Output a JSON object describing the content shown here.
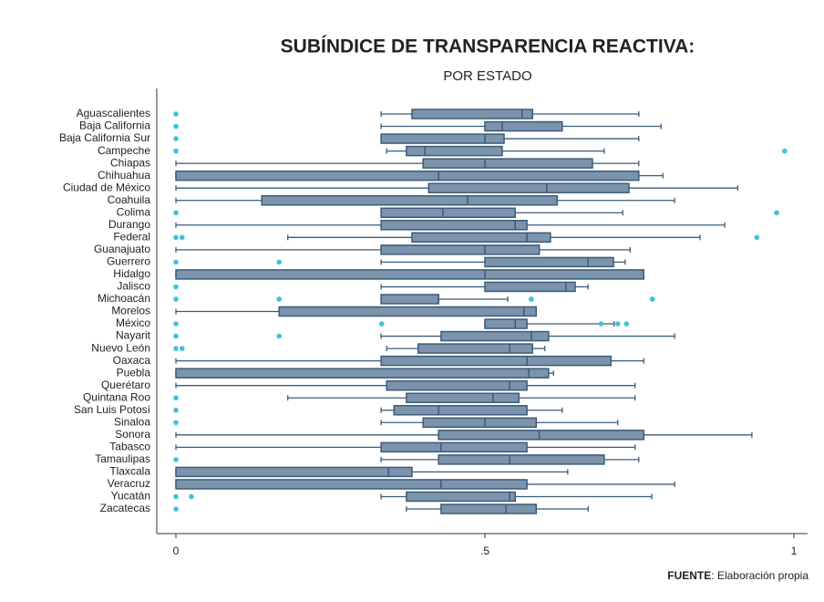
{
  "chart_data": {
    "type": "boxplot",
    "orientation": "horizontal",
    "title": "SUBÍNDICE DE TRANSPARENCIA REACTIVA:",
    "subtitle": "POR ESTADO",
    "source_label": "FUENTE",
    "source_text": ": Elaboración propia",
    "box_color": "#7b94ac",
    "line_color": "#3b5b79",
    "outlier_color": "#3fc2da",
    "xlim": [
      0,
      1
    ],
    "xticks": [
      0,
      {
        "value": 0.5,
        "label": ".5"
      },
      1
    ],
    "categories": [
      "Aguascalientes",
      "Baja California",
      "Baja California Sur",
      "Campeche",
      "Chiapas",
      "Chihuahua",
      "Ciudad de México",
      "Coahuila",
      "Colima",
      "Durango",
      "Federal",
      "Guanajuato",
      "Guerrero",
      "Hidalgo",
      "Jalisco",
      "Michoacán",
      "Morelos",
      "México",
      "Nayarit",
      "Nuevo León",
      "Oaxaca",
      "Puebla",
      "Querétaro",
      "Quintana Roo",
      "San Luis Potosí",
      "Sinaloa",
      "Sonora",
      "Tabasco",
      "Tamaulipas",
      "Tlaxcala",
      "Veracruz",
      "Yucatán",
      "Zacatecas"
    ],
    "boxes": [
      {
        "low": 0.332,
        "q1": 0.382,
        "median": 0.56,
        "q3": 0.577,
        "high": 0.749,
        "outliers": [
          0
        ]
      },
      {
        "low": 0.332,
        "q1": 0.5,
        "median": 0.528,
        "q3": 0.625,
        "high": 0.785,
        "outliers": [
          0
        ]
      },
      {
        "low": 0.332,
        "q1": 0.332,
        "median": 0.5,
        "q3": 0.531,
        "high": 0.749,
        "outliers": [
          0
        ]
      },
      {
        "low": 0.341,
        "q1": 0.373,
        "median": 0.403,
        "q3": 0.528,
        "high": 0.693,
        "outliers": [
          0,
          0.985
        ]
      },
      {
        "low": 0,
        "q1": 0.4,
        "median": 0.5,
        "q3": 0.674,
        "high": 0.749,
        "outliers": []
      },
      {
        "low": 0,
        "q1": 0,
        "median": 0.425,
        "q3": 0.749,
        "high": 0.788,
        "outliers": []
      },
      {
        "low": 0,
        "q1": 0.409,
        "median": 0.6,
        "q3": 0.733,
        "high": 0.909,
        "outliers": []
      },
      {
        "low": 0,
        "q1": 0.139,
        "median": 0.472,
        "q3": 0.617,
        "high": 0.807,
        "outliers": []
      },
      {
        "low": 0.332,
        "q1": 0.332,
        "median": 0.432,
        "q3": 0.549,
        "high": 0.723,
        "outliers": [
          0,
          0.972
        ]
      },
      {
        "low": 0,
        "q1": 0.332,
        "median": 0.549,
        "q3": 0.568,
        "high": 0.888,
        "outliers": []
      },
      {
        "low": 0.181,
        "q1": 0.382,
        "median": 0.568,
        "q3": 0.606,
        "high": 0.848,
        "outliers": [
          0,
          0.01,
          0.94
        ]
      },
      {
        "low": 0,
        "q1": 0.332,
        "median": 0.5,
        "q3": 0.588,
        "high": 0.735,
        "outliers": []
      },
      {
        "low": 0.332,
        "q1": 0.5,
        "median": 0.667,
        "q3": 0.708,
        "high": 0.727,
        "outliers": [
          0,
          0.167
        ]
      },
      {
        "low": 0,
        "q1": 0,
        "median": 0.5,
        "q3": 0.757,
        "high": 0.757,
        "outliers": []
      },
      {
        "low": 0.332,
        "q1": 0.5,
        "median": 0.631,
        "q3": 0.646,
        "high": 0.667,
        "outliers": [
          0
        ]
      },
      {
        "low": 0.332,
        "q1": 0.332,
        "median": 0.425,
        "q3": 0.425,
        "high": 0.537,
        "outliers": [
          0,
          0.167,
          0.575,
          0.771
        ]
      },
      {
        "low": 0,
        "q1": 0.167,
        "median": 0.563,
        "q3": 0.583,
        "high": 0.583,
        "outliers": []
      },
      {
        "low": 0.5,
        "q1": 0.5,
        "median": 0.549,
        "q3": 0.568,
        "high": 0.709,
        "outliers": [
          0,
          0.333,
          0.688,
          0.715,
          0.729
        ]
      },
      {
        "low": 0.332,
        "q1": 0.429,
        "median": 0.575,
        "q3": 0.603,
        "high": 0.807,
        "outliers": [
          0,
          0.167
        ]
      },
      {
        "low": 0.341,
        "q1": 0.392,
        "median": 0.54,
        "q3": 0.577,
        "high": 0.597,
        "outliers": [
          0,
          0.01
        ]
      },
      {
        "low": 0,
        "q1": 0.332,
        "median": 0.568,
        "q3": 0.704,
        "high": 0.757,
        "outliers": []
      },
      {
        "low": 0,
        "q1": 0,
        "median": 0.571,
        "q3": 0.603,
        "high": 0.611,
        "outliers": []
      },
      {
        "low": 0,
        "q1": 0.341,
        "median": 0.54,
        "q3": 0.568,
        "high": 0.743,
        "outliers": []
      },
      {
        "low": 0.181,
        "q1": 0.373,
        "median": 0.513,
        "q3": 0.555,
        "high": 0.743,
        "outliers": [
          0
        ]
      },
      {
        "low": 0.332,
        "q1": 0.353,
        "median": 0.425,
        "q3": 0.568,
        "high": 0.625,
        "outliers": [
          0
        ]
      },
      {
        "low": 0.332,
        "q1": 0.4,
        "median": 0.5,
        "q3": 0.583,
        "high": 0.715,
        "outliers": [
          0
        ]
      },
      {
        "low": 0,
        "q1": 0.425,
        "median": 0.588,
        "q3": 0.757,
        "high": 0.932,
        "outliers": []
      },
      {
        "low": 0,
        "q1": 0.332,
        "median": 0.429,
        "q3": 0.568,
        "high": 0.743,
        "outliers": []
      },
      {
        "low": 0.332,
        "q1": 0.425,
        "median": 0.54,
        "q3": 0.693,
        "high": 0.749,
        "outliers": [
          0
        ]
      },
      {
        "low": 0,
        "q1": 0,
        "median": 0.344,
        "q3": 0.382,
        "high": 0.634,
        "outliers": []
      },
      {
        "low": 0,
        "q1": 0,
        "median": 0.429,
        "q3": 0.568,
        "high": 0.807,
        "outliers": []
      },
      {
        "low": 0.332,
        "q1": 0.373,
        "median": 0.54,
        "q3": 0.549,
        "high": 0.77,
        "outliers": [
          0,
          0.025
        ]
      },
      {
        "low": 0.373,
        "q1": 0.429,
        "median": 0.534,
        "q3": 0.583,
        "high": 0.667,
        "outliers": [
          0
        ]
      }
    ]
  }
}
